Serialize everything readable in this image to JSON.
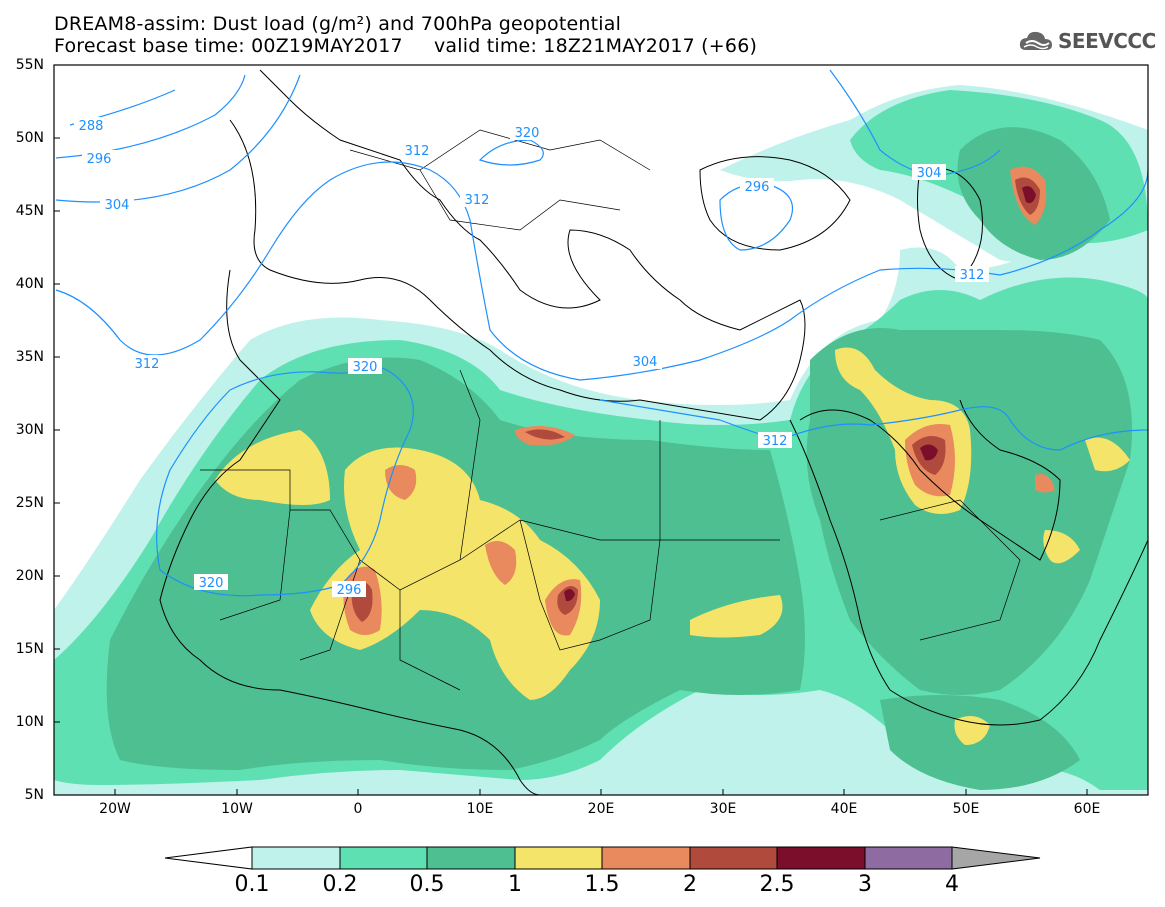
{
  "header": {
    "title_line1": "DREAM8-assim: Dust load (g/m²) and 700hPa geopotential",
    "title_line2": "Forecast base time: 00Z19MAY2017     valid time: 18Z21MAY2017 (+66)"
  },
  "logo": {
    "text": "SEEVCCC",
    "icon": "cloud-icon",
    "color": "#555555"
  },
  "map": {
    "lat_labels": [
      "55N",
      "50N",
      "45N",
      "40N",
      "35N",
      "30N",
      "25N",
      "20N",
      "15N",
      "10N",
      "5N"
    ],
    "lon_labels": [
      "20W",
      "10W",
      "0",
      "10E",
      "20E",
      "30E",
      "40E",
      "50E",
      "60E"
    ],
    "contour_labels": [
      "288",
      "296",
      "304",
      "312",
      "312",
      "312",
      "320",
      "320",
      "320",
      "296",
      "296",
      "304",
      "304",
      "312",
      "312"
    ],
    "contour_color": "#1e90ff"
  },
  "colorbar": {
    "labels": [
      "0.1",
      "0.2",
      "0.5",
      "1",
      "1.5",
      "2",
      "2.5",
      "3",
      "4"
    ],
    "colors": [
      "#bff2ea",
      "#5fe0b3",
      "#4ebf90",
      "#f5e46a",
      "#e8895e",
      "#b04a3c",
      "#7a0e2b",
      "#8e6ba0",
      "#a6a6a6"
    ]
  }
}
